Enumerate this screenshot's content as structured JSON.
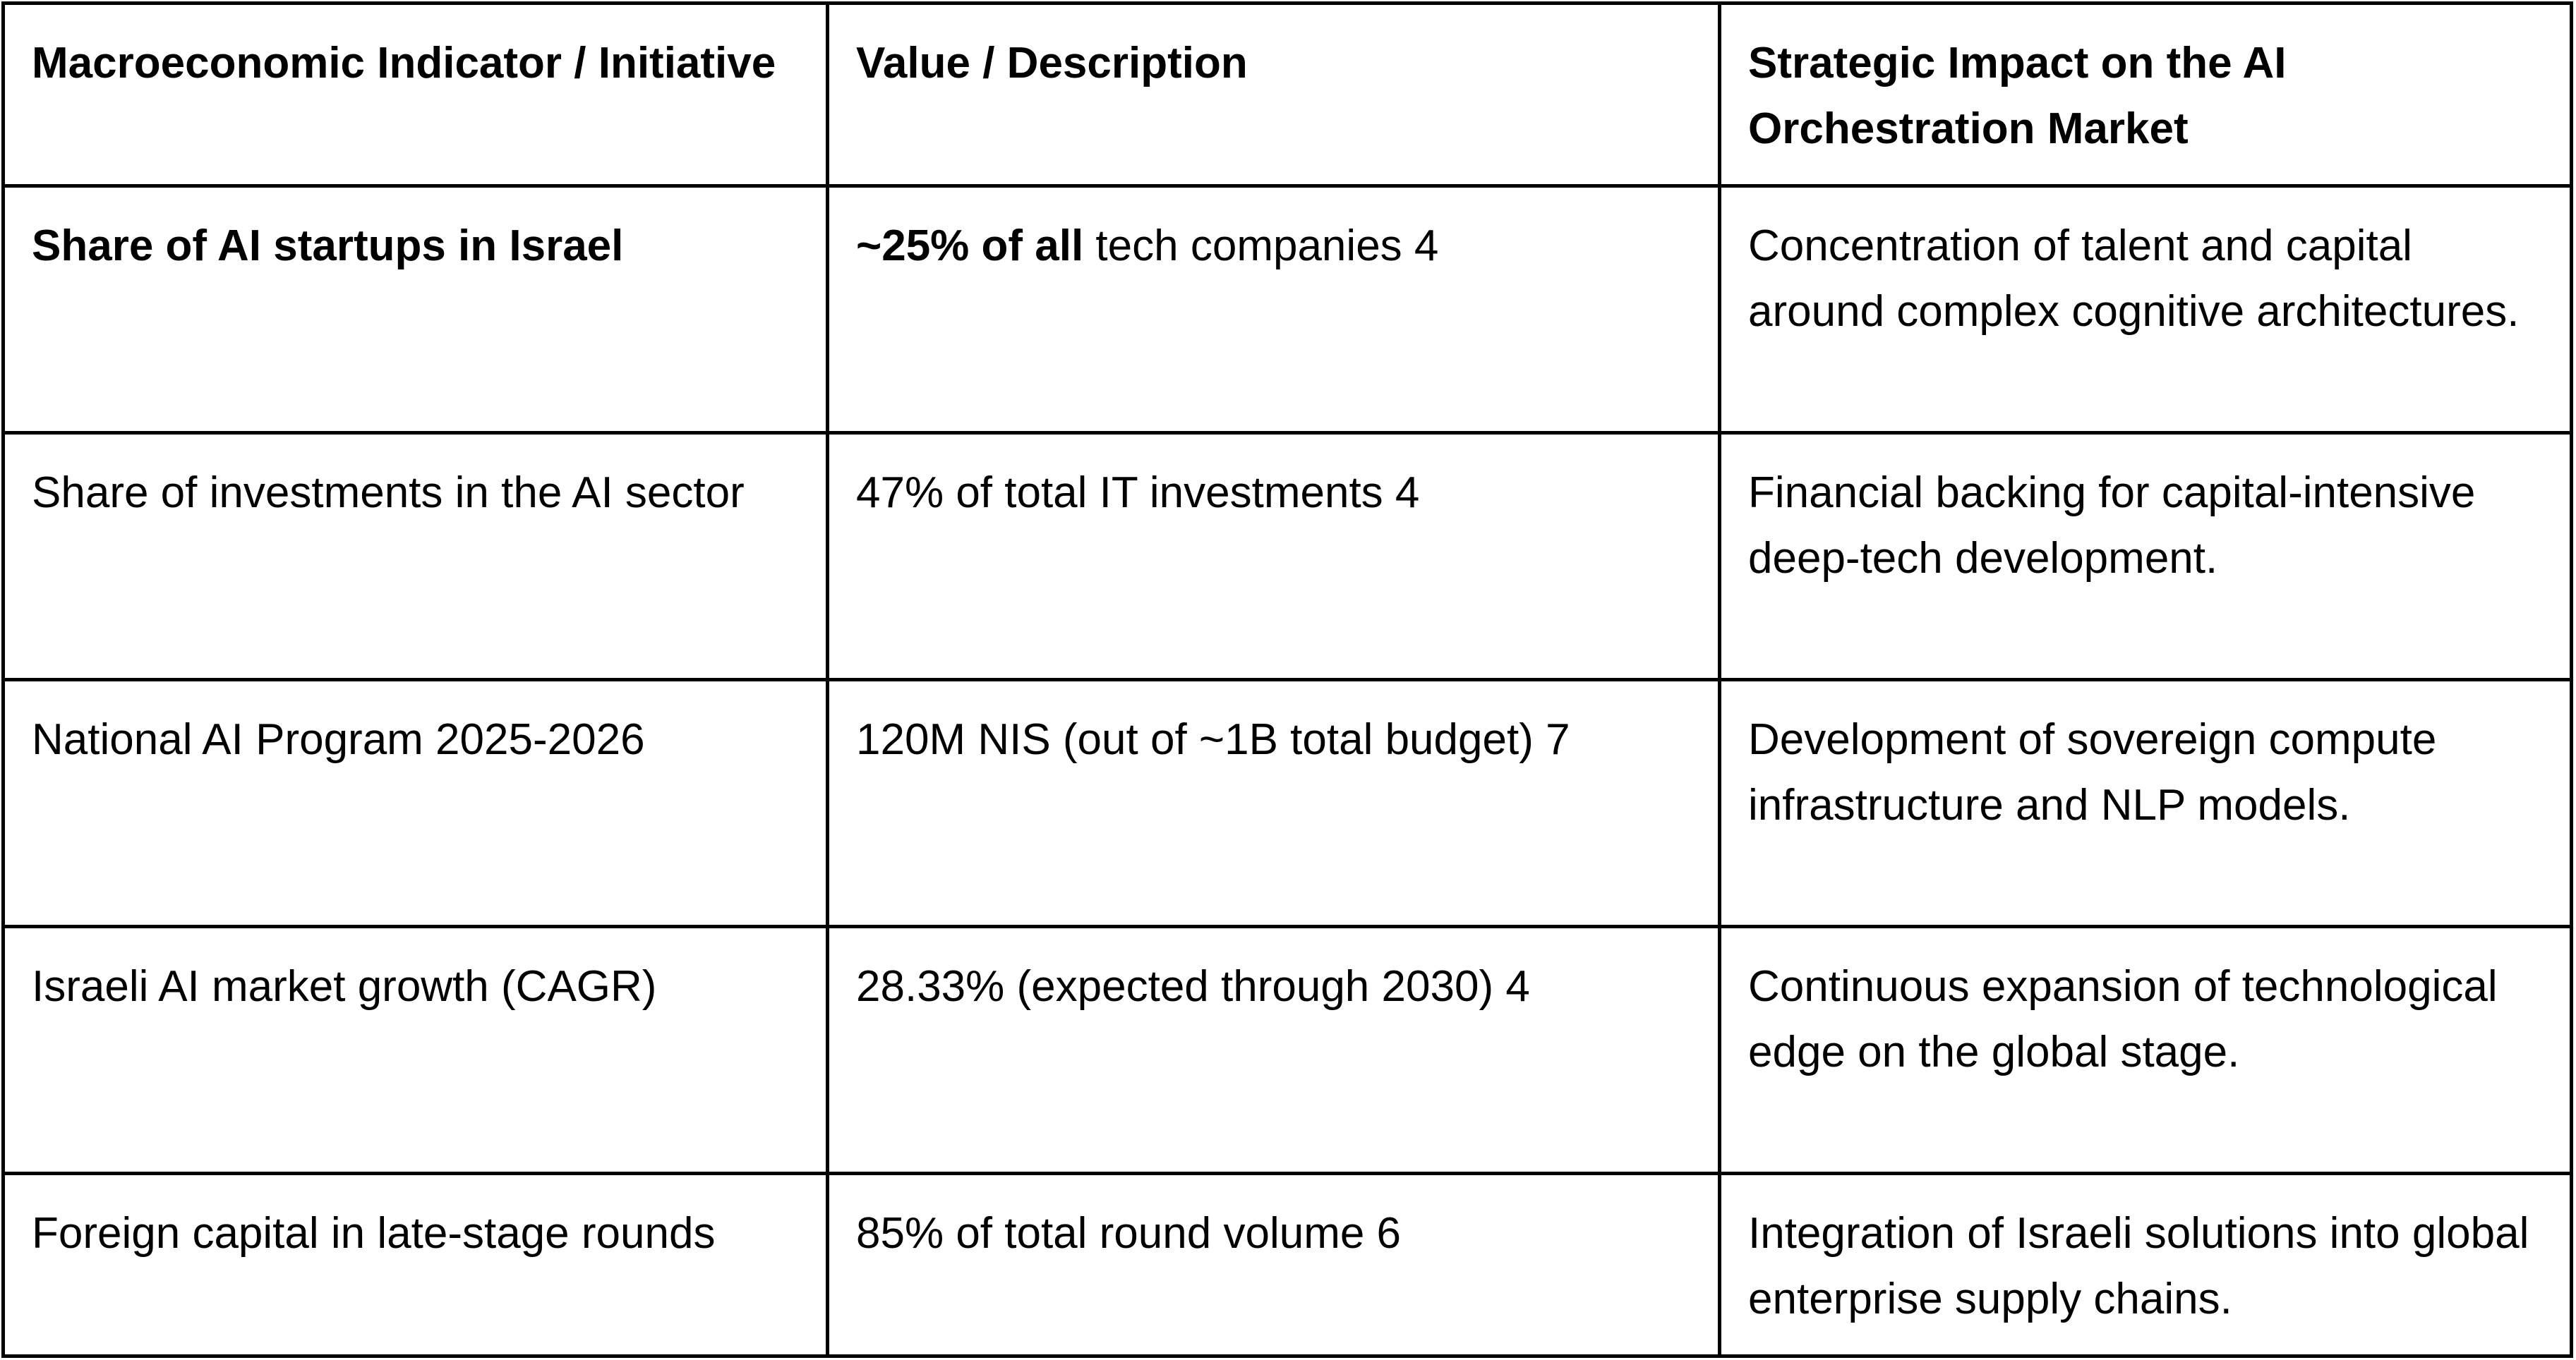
{
  "table": {
    "headers": [
      "Macroeconomic Indicator / Initiative",
      "Value / Description",
      "Strategic Impact on the AI Orchestration Market"
    ],
    "rows": [
      {
        "indicator": "Share of AI startups in Israel",
        "value_bold": "~25% of all",
        "value": " tech companies 4",
        "impact": "Concentration of talent and capital around complex cognitive architectures."
      },
      {
        "indicator": "Share of investments in the AI sector",
        "value": "47% of total IT investments 4",
        "impact": "Financial backing for capital-intensive deep-tech development."
      },
      {
        "indicator": "National AI Program 2025-2026",
        "value": "120M NIS (out of ~1B total budget) 7",
        "impact": "Development of sovereign compute infrastructure and NLP models."
      },
      {
        "indicator": "Israeli AI market growth (CAGR)",
        "value": "28.33% (expected through 2030) 4",
        "impact": "Continuous expansion of technological edge on the global stage."
      },
      {
        "indicator": "Foreign capital in late-stage rounds",
        "value": "85% of total round volume 6",
        "impact": "Integration of Israeli solutions into global enterprise supply chains."
      }
    ]
  }
}
